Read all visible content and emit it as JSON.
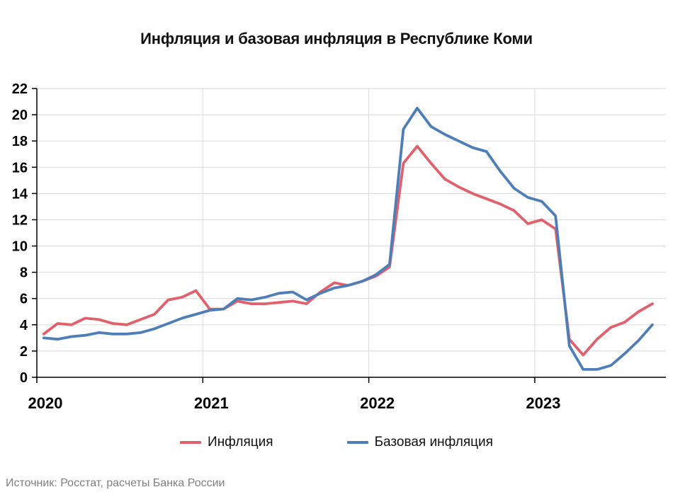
{
  "page": {
    "title": "Инфляция и базовая инфляция в Республике Коми",
    "source_note": "Источник: Росстат, расчеты Банка России"
  },
  "legend": {
    "items": [
      {
        "label": "Инфляция",
        "color": "#e2606b"
      },
      {
        "label": "Базовая инфляция",
        "color": "#4e7eb8"
      }
    ]
  },
  "colors": {
    "inflation_line": "#e2606b",
    "core_inflation_line": "#4e7eb8",
    "gridline": "#d9d9d9",
    "axis": "#000000",
    "source_text": "#7f7f7f"
  },
  "chart_data": {
    "type": "line",
    "title": "Инфляция и базовая инфляция в Республике Коми",
    "x_frequency": "monthly",
    "x_start": "2020-01",
    "x_end": "2023-09",
    "x_tick_labels": [
      "2020",
      "2021",
      "2022",
      "2023"
    ],
    "ylim": [
      0,
      22
    ],
    "ytick_step": 2,
    "grid": true,
    "legend_position": "bottom",
    "units": "percent, year-over-year",
    "series": [
      {
        "name": "Инфляция",
        "color": "#e2606b",
        "values": [
          3.3,
          4.1,
          4.0,
          4.5,
          4.4,
          4.1,
          4.0,
          4.4,
          4.8,
          5.9,
          6.1,
          6.6,
          5.2,
          5.2,
          5.8,
          5.6,
          5.6,
          5.7,
          5.8,
          5.6,
          6.5,
          7.2,
          7.0,
          7.3,
          7.7,
          8.4,
          16.3,
          17.6,
          16.3,
          15.1,
          14.5,
          14.0,
          13.6,
          13.2,
          12.7,
          11.7,
          12.0,
          11.3,
          2.9,
          1.7,
          2.9,
          3.8,
          4.2,
          5.0,
          5.6
        ]
      },
      {
        "name": "Базовая инфляция",
        "color": "#4e7eb8",
        "values": [
          3.0,
          2.9,
          3.1,
          3.2,
          3.4,
          3.3,
          3.3,
          3.4,
          3.7,
          4.1,
          4.5,
          4.8,
          5.1,
          5.2,
          6.0,
          5.9,
          6.1,
          6.4,
          6.5,
          5.9,
          6.4,
          6.8,
          7.0,
          7.3,
          7.8,
          8.6,
          18.9,
          20.5,
          19.1,
          18.5,
          18.0,
          17.5,
          17.2,
          15.7,
          14.4,
          13.7,
          13.4,
          12.3,
          2.4,
          0.6,
          0.6,
          0.9,
          1.8,
          2.8,
          4.0
        ]
      }
    ]
  }
}
